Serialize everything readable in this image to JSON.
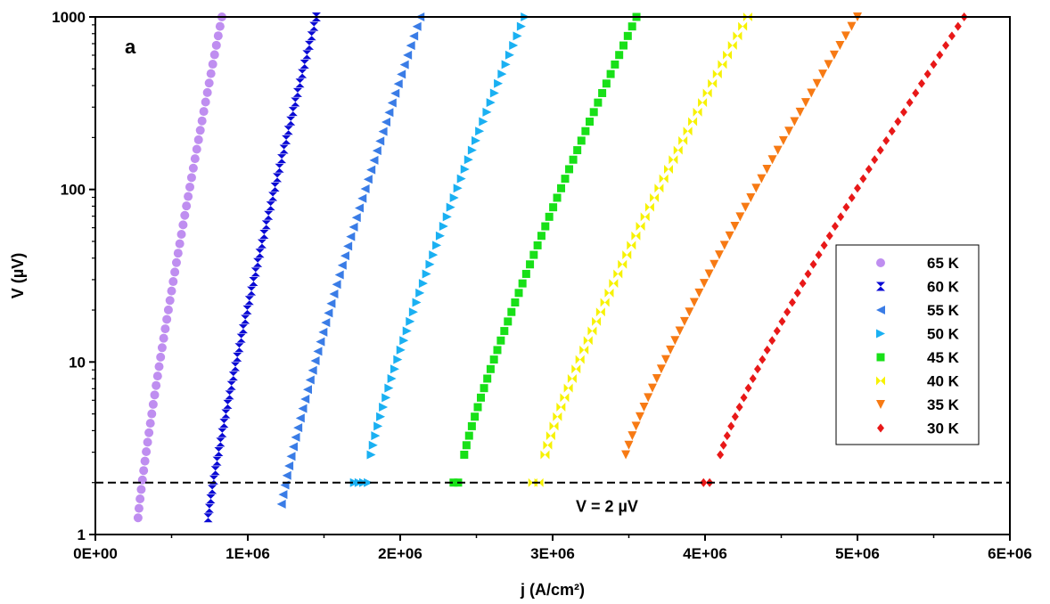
{
  "chart_data": {
    "type": "scatter",
    "panel_label": "a",
    "xlabel": "j (A/cm²)",
    "ylabel": "V (µV)",
    "xlim": [
      0,
      6000000
    ],
    "ylim": [
      1,
      1000
    ],
    "yscale": "log",
    "x_tick_values": [
      0,
      1000000,
      2000000,
      3000000,
      4000000,
      5000000,
      6000000
    ],
    "x_tick_labels": [
      "0E+00",
      "1E+06",
      "2E+06",
      "3E+06",
      "4E+06",
      "5E+06",
      "6E+06"
    ],
    "y_tick_values": [
      1,
      10,
      100,
      1000
    ],
    "y_tick_labels": [
      "1",
      "10",
      "100",
      "1000"
    ],
    "legend_position": "right",
    "reference_line": {
      "y": 2,
      "style": "dashed",
      "label": "V = 2 µV"
    },
    "series": [
      {
        "name": "65 K",
        "color": "#bf8ef0",
        "marker": "circle",
        "x0": 280000,
        "x1": 830000,
        "k": 0.13,
        "v_start": 1.25
      },
      {
        "name": "60 K",
        "color": "#0a0ad4",
        "marker": "hourglass",
        "x0": 740000,
        "x1": 1450000,
        "k": 0.25,
        "v_start": 1.25
      },
      {
        "name": "55 K",
        "color": "#3a7ce6",
        "marker": "triangle-left",
        "x0": 1220000,
        "x1": 2130000,
        "k": 0.35,
        "v_start": 1.5
      },
      {
        "name": "50 K",
        "color": "#1ab0f2",
        "marker": "triangle-right",
        "x0": 1810000,
        "x1": 2820000,
        "k": 0.5,
        "v_start": 2.9,
        "threshold_points": [
          1700000,
          1730000,
          1760000,
          1790000
        ]
      },
      {
        "name": "45 K",
        "color": "#18e018",
        "marker": "square",
        "x0": 2420000,
        "x1": 3550000,
        "k": 0.55,
        "v_start": 2.9,
        "threshold_points": [
          2350000,
          2380000
        ]
      },
      {
        "name": "40 K",
        "color": "#f7f200",
        "marker": "bowtie",
        "x0": 2950000,
        "x1": 4280000,
        "k": 0.55,
        "v_start": 2.9,
        "threshold_points": [
          2870000,
          2910000
        ]
      },
      {
        "name": "35 K",
        "color": "#f77a14",
        "marker": "triangle-down",
        "x0": 3480000,
        "x1": 5000000,
        "k": 0.6,
        "v_start": 2.9
      },
      {
        "name": "30 K",
        "color": "#e81818",
        "marker": "diamond",
        "x0": 4100000,
        "x1": 5700000,
        "k": 0.6,
        "v_start": 2.9,
        "threshold_points": [
          3990000,
          4030000
        ]
      }
    ]
  }
}
